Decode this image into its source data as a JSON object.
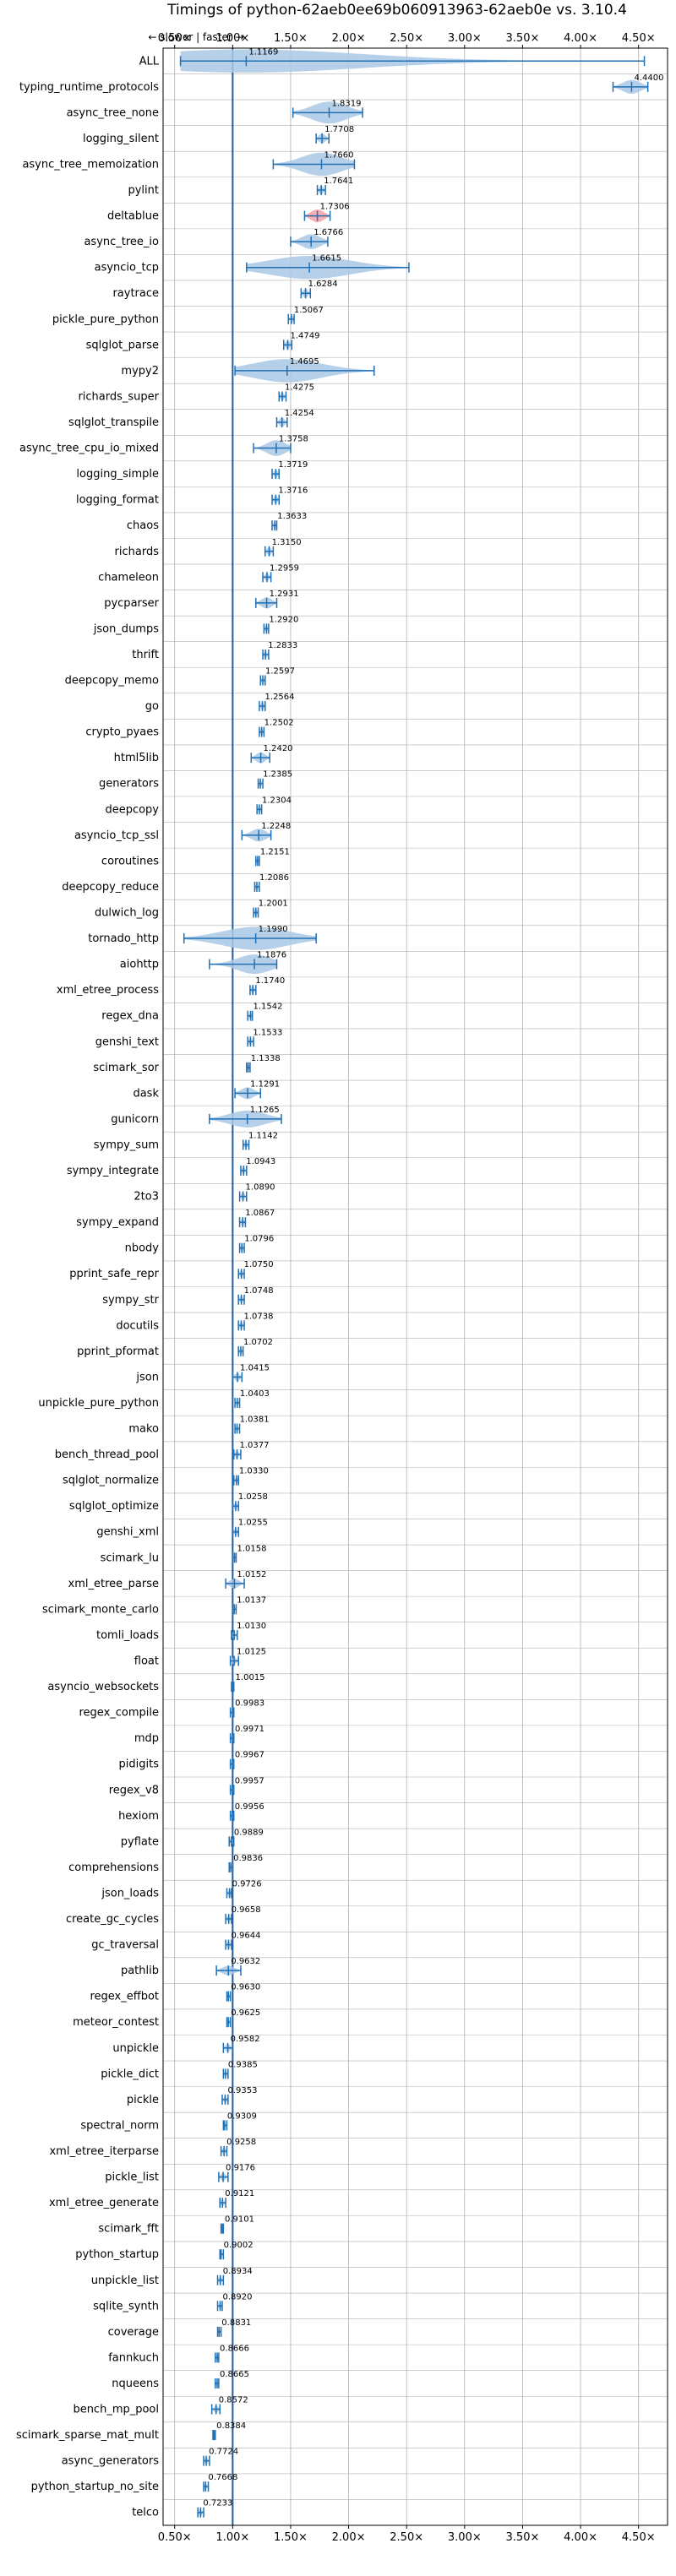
{
  "chart_data": {
    "type": "violin",
    "title": "Timings of python-62aeb0ee69b060913963-62aeb0e vs. 3.10.4",
    "subtitle": "← slower | faster →",
    "xlim": [
      0.4,
      4.75
    ],
    "xticks": [
      0.5,
      1.0,
      1.5,
      2.0,
      2.5,
      3.0,
      3.5,
      4.0,
      4.5
    ],
    "xtick_labels": [
      "0.50x",
      "1.00x",
      "1.50x",
      "2.00x",
      "2.50x",
      "3.00x",
      "3.50x",
      "4.00x",
      "4.50x"
    ],
    "reference_line": 1.0,
    "grid": true,
    "colors": {
      "violin": "#aac8e6",
      "line": "#2070b4",
      "highlight": "#f4a0a8",
      "ref": "#1f5fa0",
      "grid": "#b0b0b0"
    },
    "benchmarks": [
      {
        "name": "ALL",
        "value": 1.1169,
        "value_label": "1.1169",
        "min": 0.55,
        "max": 4.55,
        "spread": 0.45
      },
      {
        "name": "typing_runtime_protocols",
        "value": 4.44,
        "value_label": "4.4400",
        "min": 4.28,
        "max": 4.58,
        "spread": 0.14
      },
      {
        "name": "async_tree_none",
        "value": 1.8319,
        "value_label": "1.8319",
        "min": 1.52,
        "max": 2.12,
        "spread": 0.3
      },
      {
        "name": "logging_silent",
        "value": 1.7708,
        "value_label": "1.7708",
        "min": 1.72,
        "max": 1.83,
        "spread": 0.06
      },
      {
        "name": "async_tree_memoization",
        "value": 1.766,
        "value_label": "1.7660",
        "min": 1.35,
        "max": 2.05,
        "spread": 0.35
      },
      {
        "name": "pylint",
        "value": 1.7641,
        "value_label": "1.7641",
        "min": 1.73,
        "max": 1.8,
        "spread": 0.04
      },
      {
        "name": "deltablue",
        "value": 1.7306,
        "value_label": "1.7306",
        "min": 1.62,
        "max": 1.84,
        "spread": 0.12,
        "highlight": true
      },
      {
        "name": "async_tree_io",
        "value": 1.6766,
        "value_label": "1.6766",
        "min": 1.5,
        "max": 1.82,
        "spread": 0.16
      },
      {
        "name": "asyncio_tcp",
        "value": 1.6615,
        "value_label": "1.6615",
        "min": 1.12,
        "max": 2.52,
        "spread": 0.45
      },
      {
        "name": "raytrace",
        "value": 1.6284,
        "value_label": "1.6284",
        "min": 1.59,
        "max": 1.67,
        "spread": 0.05
      },
      {
        "name": "pickle_pure_python",
        "value": 1.5067,
        "value_label": "1.5067",
        "min": 1.48,
        "max": 1.53,
        "spread": 0.03
      },
      {
        "name": "sqlglot_parse",
        "value": 1.4749,
        "value_label": "1.4749",
        "min": 1.44,
        "max": 1.51,
        "spread": 0.04
      },
      {
        "name": "mypy2",
        "value": 1.4695,
        "value_label": "1.4695",
        "min": 1.02,
        "max": 2.22,
        "spread": 0.6
      },
      {
        "name": "richards_super",
        "value": 1.4275,
        "value_label": "1.4275",
        "min": 1.4,
        "max": 1.46,
        "spread": 0.03
      },
      {
        "name": "sqlglot_transpile",
        "value": 1.4254,
        "value_label": "1.4254",
        "min": 1.38,
        "max": 1.47,
        "spread": 0.05
      },
      {
        "name": "async_tree_cpu_io_mixed",
        "value": 1.3758,
        "value_label": "1.3758",
        "min": 1.18,
        "max": 1.5,
        "spread": 0.18
      },
      {
        "name": "logging_simple",
        "value": 1.3719,
        "value_label": "1.3719",
        "min": 1.34,
        "max": 1.4,
        "spread": 0.03
      },
      {
        "name": "logging_format",
        "value": 1.3716,
        "value_label": "1.3716",
        "min": 1.34,
        "max": 1.4,
        "spread": 0.03
      },
      {
        "name": "chaos",
        "value": 1.3633,
        "value_label": "1.3633",
        "min": 1.34,
        "max": 1.38,
        "spread": 0.02
      },
      {
        "name": "richards",
        "value": 1.315,
        "value_label": "1.3150",
        "min": 1.28,
        "max": 1.35,
        "spread": 0.03
      },
      {
        "name": "chameleon",
        "value": 1.2959,
        "value_label": "1.2959",
        "min": 1.26,
        "max": 1.33,
        "spread": 0.03
      },
      {
        "name": "pycparser",
        "value": 1.2931,
        "value_label": "1.2931",
        "min": 1.2,
        "max": 1.38,
        "spread": 0.09
      },
      {
        "name": "json_dumps",
        "value": 1.292,
        "value_label": "1.2920",
        "min": 1.27,
        "max": 1.31,
        "spread": 0.02
      },
      {
        "name": "thrift",
        "value": 1.2833,
        "value_label": "1.2833",
        "min": 1.26,
        "max": 1.31,
        "spread": 0.02
      },
      {
        "name": "deepcopy_memo",
        "value": 1.2597,
        "value_label": "1.2597",
        "min": 1.24,
        "max": 1.28,
        "spread": 0.02
      },
      {
        "name": "go",
        "value": 1.2564,
        "value_label": "1.2564",
        "min": 1.23,
        "max": 1.28,
        "spread": 0.02
      },
      {
        "name": "crypto_pyaes",
        "value": 1.2502,
        "value_label": "1.2502",
        "min": 1.23,
        "max": 1.27,
        "spread": 0.02
      },
      {
        "name": "html5lib",
        "value": 1.242,
        "value_label": "1.2420",
        "min": 1.16,
        "max": 1.32,
        "spread": 0.08
      },
      {
        "name": "generators",
        "value": 1.2385,
        "value_label": "1.2385",
        "min": 1.22,
        "max": 1.26,
        "spread": 0.02
      },
      {
        "name": "deepcopy",
        "value": 1.2304,
        "value_label": "1.2304",
        "min": 1.21,
        "max": 1.25,
        "spread": 0.02
      },
      {
        "name": "asyncio_tcp_ssl",
        "value": 1.2248,
        "value_label": "1.2248",
        "min": 1.08,
        "max": 1.33,
        "spread": 0.12
      },
      {
        "name": "coroutines",
        "value": 1.2151,
        "value_label": "1.2151",
        "min": 1.2,
        "max": 1.23,
        "spread": 0.015
      },
      {
        "name": "deepcopy_reduce",
        "value": 1.2086,
        "value_label": "1.2086",
        "min": 1.19,
        "max": 1.23,
        "spread": 0.02
      },
      {
        "name": "dulwich_log",
        "value": 1.2001,
        "value_label": "1.2001",
        "min": 1.18,
        "max": 1.22,
        "spread": 0.02
      },
      {
        "name": "tornado_http",
        "value": 1.199,
        "value_label": "1.1990",
        "min": 0.58,
        "max": 1.72,
        "spread": 0.5
      },
      {
        "name": "aiohttp",
        "value": 1.1876,
        "value_label": "1.1876",
        "min": 0.8,
        "max": 1.38,
        "spread": 0.25
      },
      {
        "name": "xml_etree_process",
        "value": 1.174,
        "value_label": "1.1740",
        "min": 1.15,
        "max": 1.2,
        "spread": 0.02
      },
      {
        "name": "regex_dna",
        "value": 1.1542,
        "value_label": "1.1542",
        "min": 1.13,
        "max": 1.17,
        "spread": 0.02
      },
      {
        "name": "genshi_text",
        "value": 1.1533,
        "value_label": "1.1533",
        "min": 1.13,
        "max": 1.18,
        "spread": 0.02
      },
      {
        "name": "scimark_sor",
        "value": 1.1338,
        "value_label": "1.1338",
        "min": 1.12,
        "max": 1.15,
        "spread": 0.015
      },
      {
        "name": "dask",
        "value": 1.1291,
        "value_label": "1.1291",
        "min": 1.02,
        "max": 1.24,
        "spread": 0.1
      },
      {
        "name": "gunicorn",
        "value": 1.1265,
        "value_label": "1.1265",
        "min": 0.8,
        "max": 1.42,
        "spread": 0.2
      },
      {
        "name": "sympy_sum",
        "value": 1.1142,
        "value_label": "1.1142",
        "min": 1.09,
        "max": 1.14,
        "spread": 0.02
      },
      {
        "name": "sympy_integrate",
        "value": 1.0943,
        "value_label": "1.0943",
        "min": 1.07,
        "max": 1.12,
        "spread": 0.02
      },
      {
        "name": "2to3",
        "value": 1.089,
        "value_label": "1.0890",
        "min": 1.06,
        "max": 1.12,
        "spread": 0.02
      },
      {
        "name": "sympy_expand",
        "value": 1.0867,
        "value_label": "1.0867",
        "min": 1.06,
        "max": 1.11,
        "spread": 0.02
      },
      {
        "name": "nbody",
        "value": 1.0796,
        "value_label": "1.0796",
        "min": 1.06,
        "max": 1.1,
        "spread": 0.015
      },
      {
        "name": "pprint_safe_repr",
        "value": 1.075,
        "value_label": "1.0750",
        "min": 1.05,
        "max": 1.1,
        "spread": 0.02
      },
      {
        "name": "sympy_str",
        "value": 1.0748,
        "value_label": "1.0748",
        "min": 1.05,
        "max": 1.1,
        "spread": 0.02
      },
      {
        "name": "docutils",
        "value": 1.0738,
        "value_label": "1.0738",
        "min": 1.05,
        "max": 1.1,
        "spread": 0.02
      },
      {
        "name": "pprint_pformat",
        "value": 1.0702,
        "value_label": "1.0702",
        "min": 1.05,
        "max": 1.09,
        "spread": 0.015
      },
      {
        "name": "json",
        "value": 1.0415,
        "value_label": "1.0415",
        "min": 1.0,
        "max": 1.08,
        "spread": 0.03
      },
      {
        "name": "unpickle_pure_python",
        "value": 1.0403,
        "value_label": "1.0403",
        "min": 1.02,
        "max": 1.06,
        "spread": 0.015
      },
      {
        "name": "mako",
        "value": 1.0381,
        "value_label": "1.0381",
        "min": 1.02,
        "max": 1.06,
        "spread": 0.015
      },
      {
        "name": "bench_thread_pool",
        "value": 1.0377,
        "value_label": "1.0377",
        "min": 1.01,
        "max": 1.07,
        "spread": 0.02
      },
      {
        "name": "sqlglot_normalize",
        "value": 1.033,
        "value_label": "1.0330",
        "min": 1.01,
        "max": 1.05,
        "spread": 0.015
      },
      {
        "name": "sqlglot_optimize",
        "value": 1.0258,
        "value_label": "1.0258",
        "min": 1.0,
        "max": 1.05,
        "spread": 0.015
      },
      {
        "name": "genshi_xml",
        "value": 1.0255,
        "value_label": "1.0255",
        "min": 1.0,
        "max": 1.05,
        "spread": 0.02
      },
      {
        "name": "scimark_lu",
        "value": 1.0158,
        "value_label": "1.0158",
        "min": 1.0,
        "max": 1.03,
        "spread": 0.015
      },
      {
        "name": "xml_etree_parse",
        "value": 1.0152,
        "value_label": "1.0152",
        "min": 0.94,
        "max": 1.1,
        "spread": 0.05
      },
      {
        "name": "scimark_monte_carlo",
        "value": 1.0137,
        "value_label": "1.0137",
        "min": 1.0,
        "max": 1.03,
        "spread": 0.01
      },
      {
        "name": "tomli_loads",
        "value": 1.013,
        "value_label": "1.0130",
        "min": 0.99,
        "max": 1.04,
        "spread": 0.02
      },
      {
        "name": "float",
        "value": 1.0125,
        "value_label": "1.0125",
        "min": 0.98,
        "max": 1.05,
        "spread": 0.02
      },
      {
        "name": "asyncio_websockets",
        "value": 1.0015,
        "value_label": "1.0015",
        "min": 0.99,
        "max": 1.01,
        "spread": 0.01
      },
      {
        "name": "regex_compile",
        "value": 0.9983,
        "value_label": "0.9983",
        "min": 0.98,
        "max": 1.01,
        "spread": 0.01
      },
      {
        "name": "mdp",
        "value": 0.9971,
        "value_label": "0.9971",
        "min": 0.98,
        "max": 1.01,
        "spread": 0.01
      },
      {
        "name": "pidigits",
        "value": 0.9967,
        "value_label": "0.9967",
        "min": 0.98,
        "max": 1.01,
        "spread": 0.01
      },
      {
        "name": "regex_v8",
        "value": 0.9957,
        "value_label": "0.9957",
        "min": 0.98,
        "max": 1.01,
        "spread": 0.01
      },
      {
        "name": "hexiom",
        "value": 0.9956,
        "value_label": "0.9956",
        "min": 0.98,
        "max": 1.01,
        "spread": 0.01
      },
      {
        "name": "pyflate",
        "value": 0.9889,
        "value_label": "0.9889",
        "min": 0.97,
        "max": 1.01,
        "spread": 0.01
      },
      {
        "name": "comprehensions",
        "value": 0.9836,
        "value_label": "0.9836",
        "min": 0.97,
        "max": 1.0,
        "spread": 0.01
      },
      {
        "name": "json_loads",
        "value": 0.9726,
        "value_label": "0.9726",
        "min": 0.95,
        "max": 0.99,
        "spread": 0.015
      },
      {
        "name": "create_gc_cycles",
        "value": 0.9658,
        "value_label": "0.9658",
        "min": 0.94,
        "max": 0.99,
        "spread": 0.015
      },
      {
        "name": "gc_traversal",
        "value": 0.9644,
        "value_label": "0.9644",
        "min": 0.94,
        "max": 0.99,
        "spread": 0.015
      },
      {
        "name": "pathlib",
        "value": 0.9632,
        "value_label": "0.9632",
        "min": 0.86,
        "max": 1.07,
        "spread": 0.05
      },
      {
        "name": "regex_effbot",
        "value": 0.963,
        "value_label": "0.9630",
        "min": 0.95,
        "max": 0.98,
        "spread": 0.01
      },
      {
        "name": "meteor_contest",
        "value": 0.9625,
        "value_label": "0.9625",
        "min": 0.95,
        "max": 0.98,
        "spread": 0.01
      },
      {
        "name": "unpickle",
        "value": 0.9582,
        "value_label": "0.9582",
        "min": 0.92,
        "max": 1.0,
        "spread": 0.02
      },
      {
        "name": "pickle_dict",
        "value": 0.9385,
        "value_label": "0.9385",
        "min": 0.92,
        "max": 0.96,
        "spread": 0.01
      },
      {
        "name": "pickle",
        "value": 0.9353,
        "value_label": "0.9353",
        "min": 0.91,
        "max": 0.96,
        "spread": 0.015
      },
      {
        "name": "spectral_norm",
        "value": 0.9309,
        "value_label": "0.9309",
        "min": 0.92,
        "max": 0.95,
        "spread": 0.01
      },
      {
        "name": "xml_etree_iterparse",
        "value": 0.9258,
        "value_label": "0.9258",
        "min": 0.9,
        "max": 0.95,
        "spread": 0.015
      },
      {
        "name": "pickle_list",
        "value": 0.9176,
        "value_label": "0.9176",
        "min": 0.88,
        "max": 0.96,
        "spread": 0.02
      },
      {
        "name": "xml_etree_generate",
        "value": 0.9121,
        "value_label": "0.9121",
        "min": 0.89,
        "max": 0.94,
        "spread": 0.015
      },
      {
        "name": "scimark_fft",
        "value": 0.9101,
        "value_label": "0.9101",
        "min": 0.9,
        "max": 0.92,
        "spread": 0.008
      },
      {
        "name": "python_startup",
        "value": 0.9002,
        "value_label": "0.9002",
        "min": 0.89,
        "max": 0.92,
        "spread": 0.008
      },
      {
        "name": "unpickle_list",
        "value": 0.8934,
        "value_label": "0.8934",
        "min": 0.87,
        "max": 0.92,
        "spread": 0.015
      },
      {
        "name": "sqlite_synth",
        "value": 0.892,
        "value_label": "0.8920",
        "min": 0.87,
        "max": 0.91,
        "spread": 0.01
      },
      {
        "name": "coverage",
        "value": 0.8831,
        "value_label": "0.8831",
        "min": 0.87,
        "max": 0.9,
        "spread": 0.01
      },
      {
        "name": "fannkuch",
        "value": 0.8666,
        "value_label": "0.8666",
        "min": 0.85,
        "max": 0.88,
        "spread": 0.008
      },
      {
        "name": "nqueens",
        "value": 0.8665,
        "value_label": "0.8665",
        "min": 0.85,
        "max": 0.88,
        "spread": 0.008
      },
      {
        "name": "bench_mp_pool",
        "value": 0.8572,
        "value_label": "0.8572",
        "min": 0.82,
        "max": 0.89,
        "spread": 0.015
      },
      {
        "name": "scimark_sparse_mat_mult",
        "value": 0.8384,
        "value_label": "0.8384",
        "min": 0.83,
        "max": 0.85,
        "spread": 0.006
      },
      {
        "name": "async_generators",
        "value": 0.7724,
        "value_label": "0.7724",
        "min": 0.75,
        "max": 0.8,
        "spread": 0.015
      },
      {
        "name": "python_startup_no_site",
        "value": 0.7668,
        "value_label": "0.7668",
        "min": 0.75,
        "max": 0.79,
        "spread": 0.008
      },
      {
        "name": "telco",
        "value": 0.7233,
        "value_label": "0.7233",
        "min": 0.7,
        "max": 0.75,
        "spread": 0.015
      }
    ]
  }
}
